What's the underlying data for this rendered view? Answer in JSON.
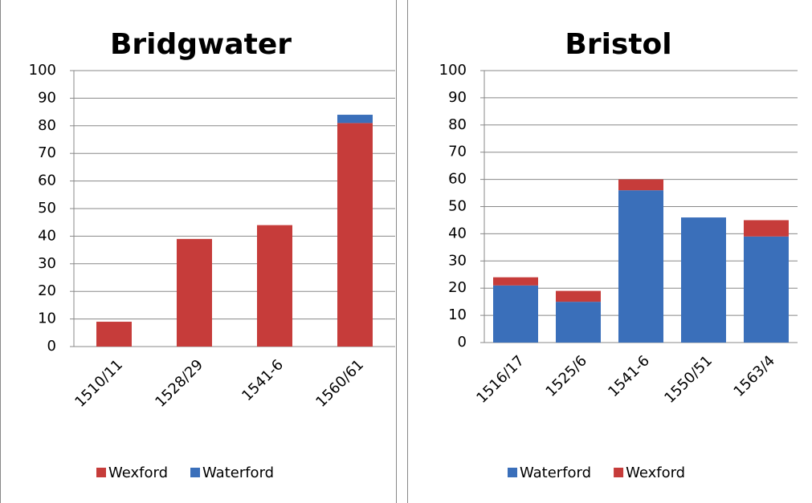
{
  "chart_data": [
    {
      "type": "bar",
      "stacked": true,
      "title": "Bridgwater",
      "categories": [
        "1510/11",
        "1528/29",
        "1541-6",
        "1560/61"
      ],
      "series": [
        {
          "name": "Wexford",
          "color": "#c63c3a",
          "values": [
            9,
            39,
            44,
            81
          ]
        },
        {
          "name": "Waterford",
          "color": "#3a6fba",
          "values": [
            0,
            0,
            0,
            3
          ]
        }
      ],
      "ylim": [
        0,
        100
      ],
      "yticks": [
        0,
        10,
        20,
        30,
        40,
        50,
        60,
        70,
        80,
        90,
        100
      ],
      "grid": true,
      "legend": "bottom"
    },
    {
      "type": "bar",
      "stacked": true,
      "title": "Bristol",
      "categories": [
        "1516/17",
        "1525/6",
        "1541-6",
        "1550/51",
        "1563/4"
      ],
      "series": [
        {
          "name": "Waterford",
          "color": "#3a6fba",
          "values": [
            21,
            15,
            56,
            46,
            39
          ]
        },
        {
          "name": "Wexford",
          "color": "#c63c3a",
          "values": [
            3,
            4,
            4,
            0,
            6
          ]
        }
      ],
      "ylim": [
        0,
        100
      ],
      "yticks": [
        0,
        10,
        20,
        30,
        40,
        50,
        60,
        70,
        80,
        90,
        100
      ],
      "grid": true,
      "legend": "bottom"
    }
  ]
}
